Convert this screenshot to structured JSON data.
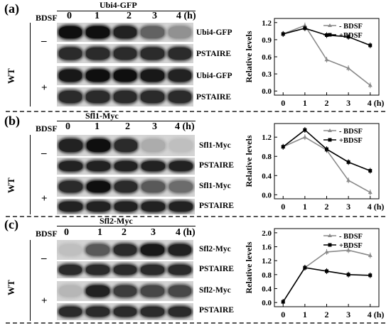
{
  "panels": [
    {
      "letter": "(a)",
      "construct": "Ubi4-GFP",
      "bdsf_label": "BDSF",
      "lanes": [
        "0",
        "1",
        "2",
        "3",
        "4 (h)"
      ],
      "strain": "WT",
      "signs": [
        "–",
        "+"
      ],
      "blots": [
        "Ubi4-GFP",
        "PSTAIRE",
        "Ubi4-GFP",
        "PSTAIRE"
      ],
      "band_levels": [
        [
          1.0,
          1.0,
          0.9,
          0.55,
          0.3
        ],
        [
          0.85,
          0.85,
          0.85,
          0.85,
          0.85
        ],
        [
          0.95,
          1.0,
          1.0,
          0.95,
          0.9
        ],
        [
          0.85,
          0.85,
          0.85,
          0.85,
          0.85
        ]
      ]
    },
    {
      "letter": "(b)",
      "construct": "Sfl1-Myc",
      "bdsf_label": "BDSF",
      "lanes": [
        "0",
        "1",
        "2",
        "3",
        "4 (h)"
      ],
      "strain": "WT",
      "signs": [
        "–",
        "+"
      ],
      "blots": [
        "Sfl1-Myc",
        "PSTAIRE",
        "Sfl1-Myc",
        "PSTAIRE"
      ],
      "band_levels": [
        [
          0.9,
          1.0,
          0.85,
          0.15,
          0.05
        ],
        [
          0.9,
          0.9,
          0.9,
          0.9,
          0.9
        ],
        [
          0.85,
          1.0,
          0.85,
          0.6,
          0.5
        ],
        [
          0.9,
          0.9,
          0.9,
          0.9,
          0.9
        ]
      ]
    },
    {
      "letter": "(c)",
      "construct": "Sfl2-Myc",
      "bdsf_label": "BDSF",
      "lanes": [
        "0",
        "1",
        "2",
        "3",
        "4 (h)"
      ],
      "strain": "WT",
      "signs": [
        "–",
        "+"
      ],
      "blots": [
        "Sfl2-Myc",
        "PSTAIRE",
        "Sfl2-Myc",
        "PSTAIRE"
      ],
      "band_levels": [
        [
          0.05,
          0.6,
          0.85,
          0.95,
          0.9
        ],
        [
          0.85,
          0.85,
          0.85,
          0.85,
          0.85
        ],
        [
          0.1,
          0.9,
          0.75,
          0.7,
          0.7
        ],
        [
          0.85,
          0.85,
          0.85,
          0.85,
          0.85
        ]
      ]
    }
  ],
  "chart_data": [
    {
      "type": "line",
      "ylabel": "Relative levels",
      "xlabel": "",
      "x": [
        0,
        1,
        2,
        3,
        4
      ],
      "x_ticks": [
        "0",
        "1",
        "2",
        "3",
        "4 (h)"
      ],
      "ylim": [
        0.0,
        1.2
      ],
      "y_ticks": [
        "0.0",
        "0.3",
        "0.6",
        "0.9",
        "1.2"
      ],
      "y_tick_values": [
        0.0,
        0.3,
        0.6,
        0.9,
        1.2
      ],
      "legend_position": "top-right",
      "series": [
        {
          "name": "- BDSF",
          "values": [
            1.0,
            1.15,
            0.55,
            0.4,
            0.1
          ],
          "color": "#8a8a8a",
          "marker": "triangle"
        },
        {
          "name": "+BDSF",
          "values": [
            1.0,
            1.1,
            0.98,
            0.95,
            0.8
          ],
          "color": "#000000",
          "marker": "square"
        }
      ]
    },
    {
      "type": "line",
      "ylabel": "Relative levels",
      "xlabel": "",
      "x": [
        0,
        1,
        2,
        3,
        4
      ],
      "x_ticks": [
        "0",
        "1",
        "2",
        "3",
        "4 (h)"
      ],
      "ylim": [
        0.0,
        1.4
      ],
      "y_ticks": [
        "0.0",
        "0.4",
        "0.8",
        "1.2"
      ],
      "y_tick_values": [
        0.0,
        0.4,
        0.8,
        1.2
      ],
      "legend_position": "top-right",
      "series": [
        {
          "name": "- BDSF",
          "values": [
            1.0,
            1.2,
            0.93,
            0.3,
            0.05
          ],
          "color": "#8a8a8a",
          "marker": "triangle"
        },
        {
          "name": "+BDSF",
          "values": [
            1.0,
            1.35,
            0.95,
            0.68,
            0.5
          ],
          "color": "#000000",
          "marker": "square"
        }
      ]
    },
    {
      "type": "line",
      "ylabel": "Relative levels",
      "xlabel": "",
      "x": [
        0,
        1,
        2,
        3,
        4
      ],
      "x_ticks": [
        "0",
        "1",
        "2",
        "3",
        "4 (h)"
      ],
      "ylim": [
        0.0,
        2.0
      ],
      "y_ticks": [
        "0.0",
        "0.4",
        "0.8",
        "1.2",
        "1.6",
        "2.0"
      ],
      "y_tick_values": [
        0.0,
        0.4,
        0.8,
        1.2,
        1.6,
        2.0
      ],
      "legend_position": "top-right",
      "series": [
        {
          "name": "- BDSF",
          "values": [
            0.02,
            1.0,
            1.45,
            1.5,
            1.35
          ],
          "color": "#8a8a8a",
          "marker": "triangle"
        },
        {
          "name": "+BDSF",
          "values": [
            0.02,
            1.0,
            0.9,
            0.8,
            0.78
          ],
          "color": "#000000",
          "marker": "square"
        }
      ]
    }
  ]
}
